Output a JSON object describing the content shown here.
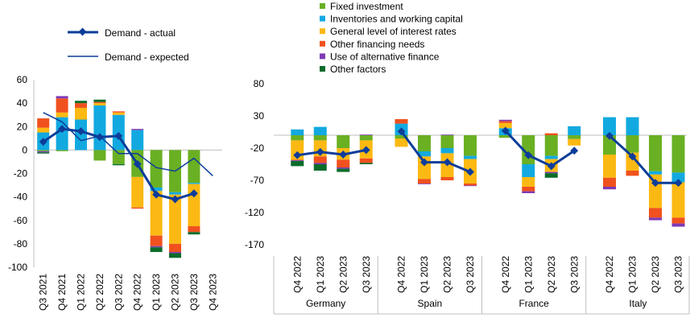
{
  "colors": {
    "fixed_investment": "#6AB023",
    "inventories": "#12A9E0",
    "interest_rates": "#FCB913",
    "other_financing": "#F0511E",
    "alt_finance": "#7F3AB5",
    "other_factors": "#0B6C2A",
    "demand_actual": "#0D3D99",
    "demand_expected": "#0D3D99"
  },
  "legend": {
    "left": {
      "actual": "Demand - actual",
      "expected": "Demand - expected"
    },
    "right": [
      {
        "key": "fixed_investment",
        "label": "Fixed investment"
      },
      {
        "key": "inventories",
        "label": "Inventories and working capital"
      },
      {
        "key": "interest_rates",
        "label": "General level of interest rates"
      },
      {
        "key": "other_financing",
        "label": "Other financing needs"
      },
      {
        "key": "alt_finance",
        "label": "Use of alternative finance"
      },
      {
        "key": "other_factors",
        "label": "Other factors"
      }
    ]
  },
  "chart_data": [
    {
      "type": "bar",
      "stacked": true,
      "ylim": [
        -100,
        60
      ],
      "yticks": [
        60,
        40,
        20,
        0,
        -20,
        -40,
        -60,
        -80,
        -100
      ],
      "grid": false,
      "categories": [
        "Q3 2021",
        "Q4 2021",
        "Q1 2022",
        "Q2 2022",
        "Q3 2022",
        "Q4 2022",
        "Q1 2023",
        "Q2 2023",
        "Q3 2023",
        "Q4 2023"
      ],
      "series": [
        {
          "key": "fixed_investment",
          "name": "Fixed investment",
          "values": [
            -1,
            -1,
            0,
            -9,
            -12,
            -23,
            -32,
            -36,
            -28,
            null
          ]
        },
        {
          "key": "inventories",
          "name": "Inventories and working capital",
          "values": [
            15,
            28,
            26,
            38,
            30,
            17,
            -3,
            -2,
            -1,
            null
          ]
        },
        {
          "key": "interest_rates",
          "name": "General level of interest rates",
          "values": [
            4,
            4,
            10,
            2,
            2,
            -26,
            -38,
            -42,
            -36,
            null
          ]
        },
        {
          "key": "other_financing",
          "name": "Other financing needs",
          "values": [
            8,
            12,
            4,
            1,
            1,
            -1,
            -9,
            -7,
            -5,
            null
          ]
        },
        {
          "key": "alt_finance",
          "name": "Use of alternative finance",
          "values": [
            -1,
            2,
            0,
            0,
            0,
            1,
            -1,
            -1,
            0,
            null
          ]
        },
        {
          "key": "other_factors",
          "name": "Other factors",
          "values": [
            -1,
            0,
            2,
            2,
            -1,
            0,
            -4,
            -4,
            -2,
            null
          ]
        }
      ],
      "lines": [
        {
          "key": "demand_actual",
          "name": "Demand - actual",
          "style": "thick-diamond",
          "values": [
            7,
            18,
            16,
            11,
            12,
            -12,
            -38,
            -42,
            -37,
            null
          ]
        },
        {
          "key": "demand_expected",
          "name": "Demand - expected",
          "style": "thin",
          "values": [
            32,
            24,
            8,
            12,
            -3,
            -3,
            -15,
            -18,
            -7,
            -22
          ]
        }
      ]
    },
    {
      "type": "bar",
      "stacked": true,
      "ylim": [
        -170,
        80
      ],
      "yticks": [
        80,
        30,
        -20,
        -70,
        -120,
        -170
      ],
      "grid": false,
      "groups": [
        {
          "name": "Germany",
          "categories": [
            "Q4 2022",
            "Q1 2023",
            "Q2 2023",
            "Q3 2023"
          ]
        },
        {
          "name": "Spain",
          "categories": [
            "Q4 2022",
            "Q1 2023",
            "Q2 2023",
            "Q3 2023"
          ]
        },
        {
          "name": "France",
          "categories": [
            "Q4 2022",
            "Q1 2023",
            "Q2 2023",
            "Q3 2023"
          ]
        },
        {
          "name": "Italy",
          "categories": [
            "Q4 2022",
            "Q1 2023",
            "Q2 2023",
            "Q3 2023"
          ]
        }
      ],
      "series": [
        {
          "key": "fixed_investment",
          "name": "Fixed investment",
          "values": [
            [
              -8,
              -8,
              -20,
              -8
            ],
            [
              -5,
              -25,
              -20,
              -32
            ],
            [
              -4,
              -45,
              -32,
              -6
            ],
            [
              -30,
              -27,
              -56,
              -58
            ]
          ]
        },
        {
          "key": "inventories",
          "name": "Inventories and working capital",
          "values": [
            [
              9,
              13,
              0,
              0
            ],
            [
              18,
              -8,
              -8,
              -5
            ],
            [
              11,
              -20,
              -5,
              14
            ],
            [
              28,
              28,
              -5,
              -15
            ]
          ]
        },
        {
          "key": "interest_rates",
          "name": "General level of interest rates",
          "values": [
            [
              -30,
              -25,
              -18,
              -28
            ],
            [
              -13,
              -35,
              -37,
              -38
            ],
            [
              8,
              -15,
              -20,
              -10
            ],
            [
              -36,
              -28,
              -52,
              -55
            ]
          ]
        },
        {
          "key": "other_financing",
          "name": "Other financing needs",
          "values": [
            [
              -1,
              -10,
              -12,
              -7
            ],
            [
              7,
              -7,
              -5,
              -3
            ],
            [
              3,
              -7,
              3,
              0
            ],
            [
              -14,
              -8,
              -15,
              -9
            ]
          ]
        },
        {
          "key": "alt_finance",
          "name": "Use of alternative finance",
          "values": [
            [
              -1,
              -2,
              -2,
              1
            ],
            [
              0,
              -1,
              1,
              -1
            ],
            [
              2,
              -3,
              -2,
              0
            ],
            [
              -4,
              0,
              -4,
              -5
            ]
          ]
        },
        {
          "key": "other_factors",
          "name": "Other factors",
          "values": [
            [
              -8,
              -10,
              -5,
              -2
            ],
            [
              0,
              0,
              0,
              0
            ],
            [
              0,
              0,
              -7,
              0
            ],
            [
              0,
              0,
              0,
              0
            ]
          ]
        }
      ],
      "lines": [
        {
          "key": "demand_actual",
          "name": "Demand - actual",
          "values": [
            [
              -31,
              -26,
              -30,
              -23
            ],
            [
              6,
              -42,
              -42,
              -57
            ],
            [
              7,
              -31,
              -48,
              -24
            ],
            [
              -1,
              -33,
              -74,
              -74
            ]
          ]
        }
      ]
    }
  ]
}
